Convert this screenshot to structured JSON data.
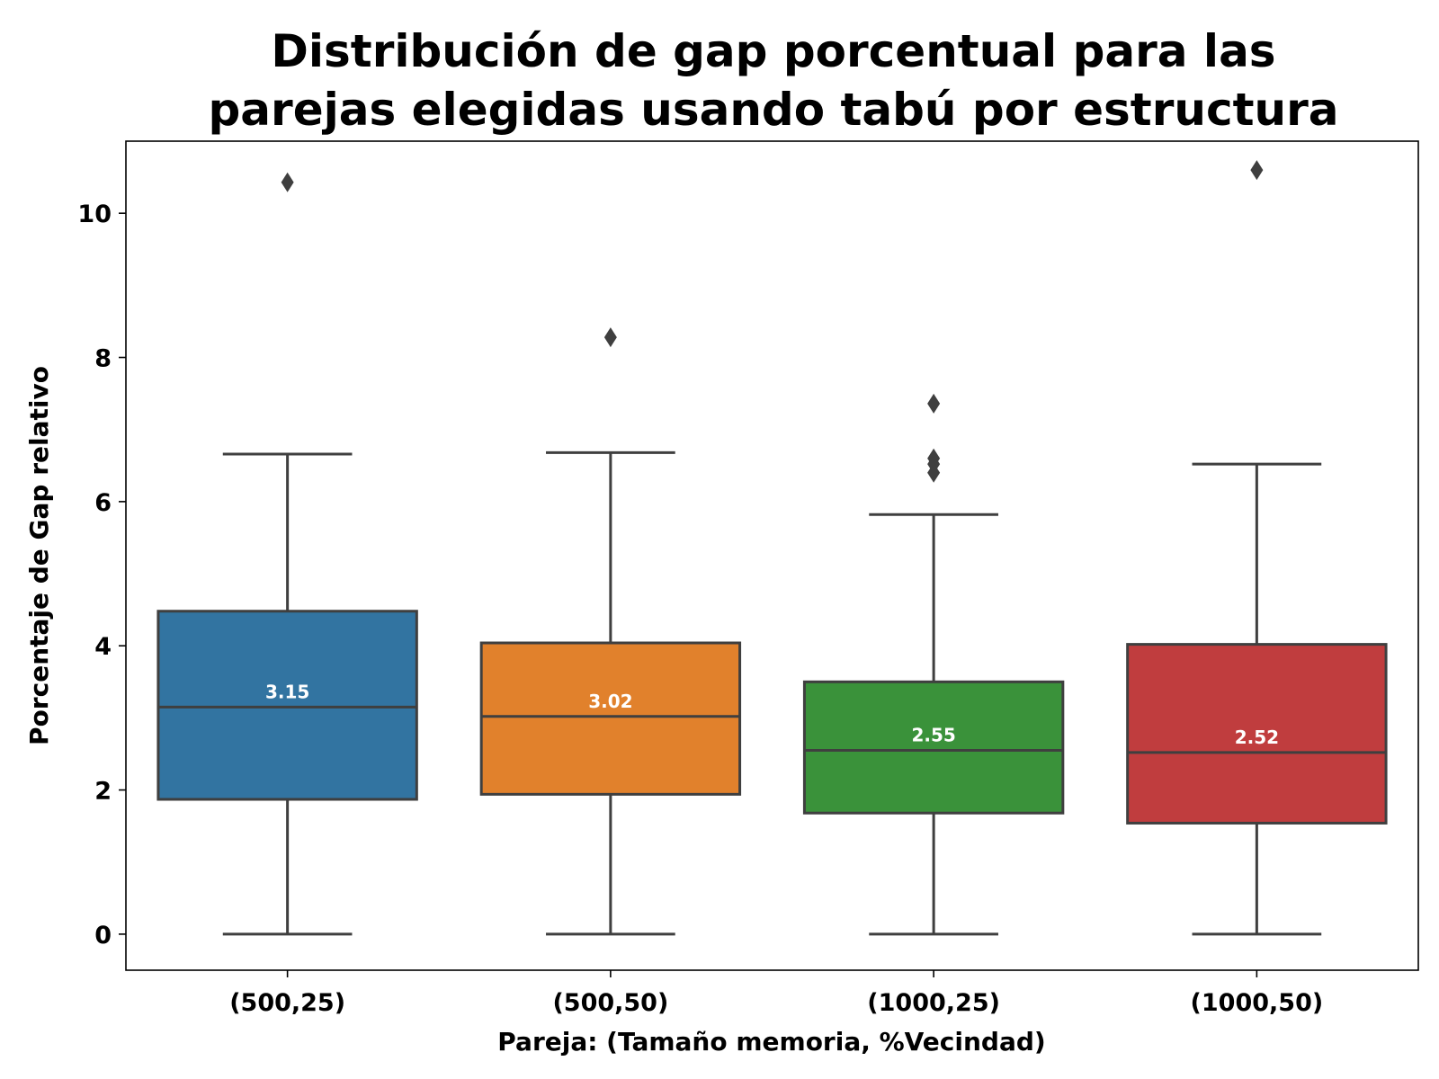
{
  "chart_data": {
    "type": "box",
    "title_lines": [
      "Distribución de gap porcentual para las",
      "parejas elegidas usando tabú por estructura"
    ],
    "xlabel": "Pareja: (Tamaño memoria, %Vecindad)",
    "ylabel": "Porcentaje de Gap relativo",
    "ylim": [
      -0.5,
      11.0
    ],
    "yticks": [
      "0",
      "2",
      "4",
      "6",
      "8",
      "10"
    ],
    "grid": false,
    "categories": [
      "(500,25)",
      "(500,50)",
      "(1000,25)",
      "(1000,50)"
    ],
    "series": [
      {
        "category": "(500,25)",
        "color": "#3274a1",
        "whisker_low": 0.0,
        "q1": 1.87,
        "median": 3.15,
        "median_label": "3.15",
        "q3": 4.48,
        "whisker_high": 6.66,
        "outliers": [
          10.43
        ]
      },
      {
        "category": "(500,50)",
        "color": "#e1812c",
        "whisker_low": 0.0,
        "q1": 1.94,
        "median": 3.02,
        "median_label": "3.02",
        "q3": 4.04,
        "whisker_high": 6.68,
        "outliers": [
          8.28
        ]
      },
      {
        "category": "(1000,25)",
        "color": "#3a923a",
        "whisker_low": 0.0,
        "q1": 1.68,
        "median": 2.55,
        "median_label": "2.55",
        "q3": 3.5,
        "whisker_high": 5.82,
        "outliers": [
          6.4,
          6.52,
          6.6,
          7.36
        ]
      },
      {
        "category": "(1000,50)",
        "color": "#c03d3e",
        "whisker_low": 0.0,
        "q1": 1.54,
        "median": 2.52,
        "median_label": "2.52",
        "q3": 4.02,
        "whisker_high": 6.52,
        "outliers": [
          10.6
        ]
      }
    ]
  }
}
